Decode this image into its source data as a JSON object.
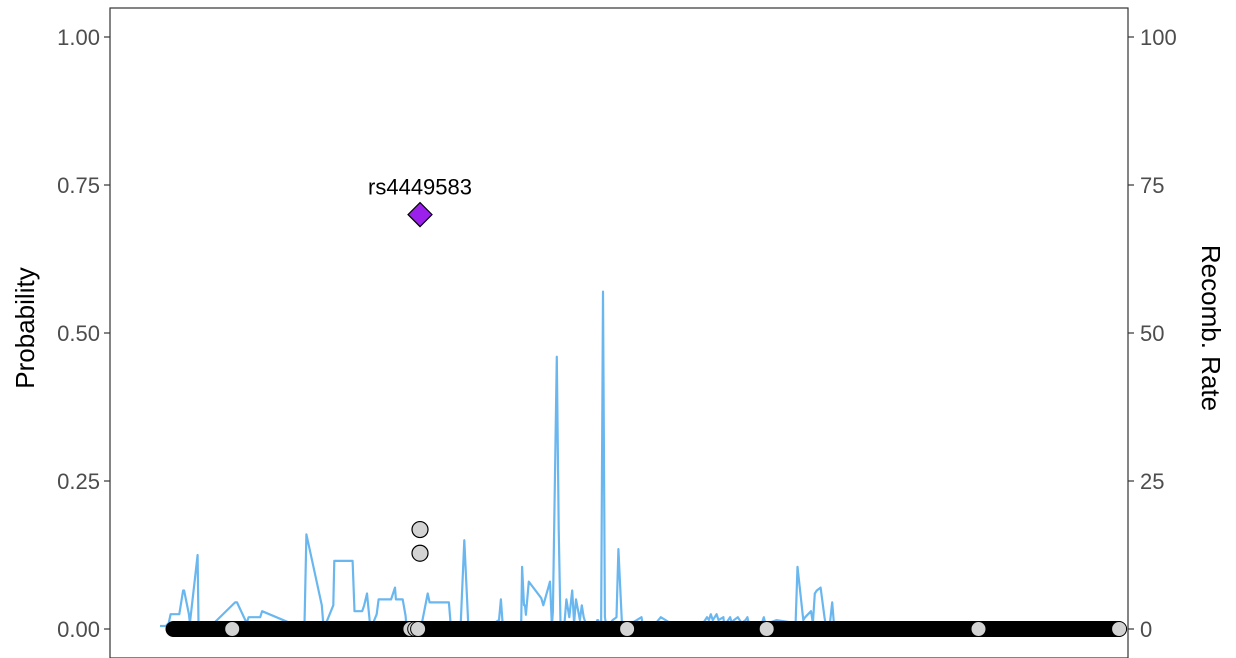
{
  "chart_data": {
    "type": "scatter",
    "title": "",
    "xlabel": "",
    "ylabel": "Probability",
    "y2label": "Recomb. Rate",
    "xlim": [
      0,
      1000
    ],
    "ylim": [
      0,
      1.0
    ],
    "y2lim": [
      0,
      100
    ],
    "y_ticks": [
      "0.00",
      "0.25",
      "0.50",
      "0.75",
      "1.00"
    ],
    "y2_ticks": [
      "0",
      "25",
      "50",
      "75",
      "100"
    ],
    "grid": false,
    "legend": "none",
    "colors": {
      "points_fill": "#000000",
      "points_light": "#d3d3d3",
      "lead_fill": "#9b20ec",
      "recomb_line": "#6ab7ef"
    },
    "lead_snp": {
      "label": "rs4449583",
      "x": 270,
      "y": 0.7
    },
    "highlight_points": [
      {
        "x": 270,
        "y": 0.168
      },
      {
        "x": 270,
        "y": 0.128
      }
    ],
    "baseline_points": {
      "y": 0.0,
      "x_start": 14,
      "x_end": 996,
      "light_x": [
        75,
        260,
        265,
        268,
        485,
        630,
        850,
        996
      ]
    },
    "recomb_rate": {
      "x": [
        0,
        6,
        9,
        11,
        20,
        24,
        25,
        30,
        31,
        39,
        40,
        41,
        55,
        56,
        78,
        80,
        90,
        92,
        104,
        106,
        150,
        152,
        168,
        170,
        180,
        181,
        200,
        202,
        210,
        212,
        215,
        218,
        220,
        225,
        227,
        240,
        244,
        245,
        252,
        255,
        256,
        270,
        272,
        278,
        280,
        300,
        302,
        312,
        316,
        320,
        338,
        342,
        352,
        354,
        356,
        358,
        375,
        376,
        378,
        379,
        380,
        383,
        396,
        398,
        405,
        407,
        408,
        412,
        414,
        416,
        420,
        422,
        425,
        428,
        430,
        432,
        436,
        438,
        440,
        442,
        448,
        450,
        453,
        454,
        455,
        458,
        460,
        462,
        464,
        470,
        474,
        476,
        480,
        500,
        502,
        510,
        520,
        540,
        560,
        566,
        568,
        570,
        572,
        574,
        576,
        578,
        580,
        585,
        586,
        588,
        592,
        594,
        596,
        600,
        602,
        604,
        608,
        610,
        612,
        625,
        627,
        630,
        632,
        640,
        660,
        662,
        668,
        670,
        676,
        678,
        680,
        682,
        686,
        690,
        692,
        695,
        698,
        700,
        702,
        718,
        720,
        722,
        724,
        726,
        728,
        730,
        740,
        741,
        743,
        746,
        752,
        754,
        756,
        760,
        762,
        780,
        781,
        787,
        790,
        792,
        810,
        812,
        822,
        824,
        826,
        840,
        843,
        848,
        850,
        856,
        872,
        876,
        890,
        901,
        920,
        960,
        964,
        986,
        988,
        990,
        992,
        996,
        1000
      ],
      "y": [
        0.5,
        0.5,
        1,
        2.5,
        2.5,
        6.5,
        6.5,
        2.5,
        1,
        12.5,
        1,
        0.5,
        1,
        1,
        4.5,
        4.5,
        1,
        2,
        2,
        3,
        0,
        16,
        4,
        0,
        4,
        11.5,
        11.5,
        3,
        3,
        4,
        6,
        1,
        0.5,
        2.5,
        5,
        5,
        7,
        5,
        5,
        2.2,
        0.3,
        0,
        1,
        6,
        4.5,
        4.5,
        0.5,
        0,
        15,
        1,
        1,
        0.5,
        1.5,
        5,
        0.5,
        0,
        0,
        10.5,
        4,
        4,
        2.4,
        8,
        5.2,
        4,
        8,
        0.5,
        3,
        46,
        17,
        0,
        1,
        5,
        2,
        6.5,
        1,
        5,
        1.5,
        4,
        2,
        1,
        0.5,
        0,
        0,
        1.5,
        1.5,
        0,
        57,
        2,
        0,
        1.5,
        2,
        13.5,
        0,
        2,
        0,
        0,
        2,
        0,
        0,
        1.5,
        2,
        1.5,
        2.5,
        1.5,
        2,
        2.5,
        1.5,
        2,
        0.5,
        1,
        2,
        1,
        1.5,
        2,
        1.5,
        1,
        1.5,
        2,
        0.5,
        1,
        2,
        0,
        1,
        1.5,
        1,
        10.5,
        1.5,
        2,
        3,
        1,
        6,
        6.5,
        7,
        2,
        0,
        0,
        4.5,
        0.5,
        0,
        0,
        0,
        0,
        0,
        0,
        0,
        0,
        0,
        0,
        0,
        0,
        0,
        0,
        0,
        0,
        0,
        0,
        0,
        0,
        0,
        0,
        0,
        0,
        0,
        0,
        0,
        0,
        0,
        0,
        0,
        0,
        0,
        0,
        0,
        0,
        0,
        0,
        0,
        0,
        0,
        0,
        0,
        0,
        0
      ]
    }
  }
}
